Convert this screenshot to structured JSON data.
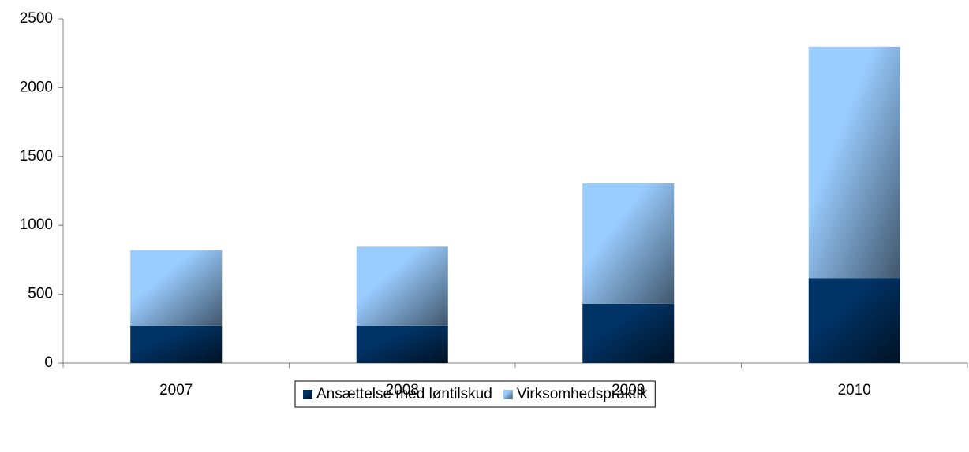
{
  "chart_data": {
    "type": "bar",
    "stacked": true,
    "categories": [
      "2007",
      "2008",
      "2009",
      "2010"
    ],
    "series": [
      {
        "name": "Ansættelse med løntilskud",
        "color": "#003366",
        "values": [
          270,
          270,
          430,
          615
        ]
      },
      {
        "name": "Virksomhedspraktik",
        "color": "#99ccff",
        "values": [
          550,
          575,
          875,
          1680
        ]
      }
    ],
    "ylim": [
      0,
      2500
    ],
    "yticks": [
      0,
      500,
      1000,
      1500,
      2000,
      2500
    ],
    "grid": false,
    "legend": "bottom"
  }
}
